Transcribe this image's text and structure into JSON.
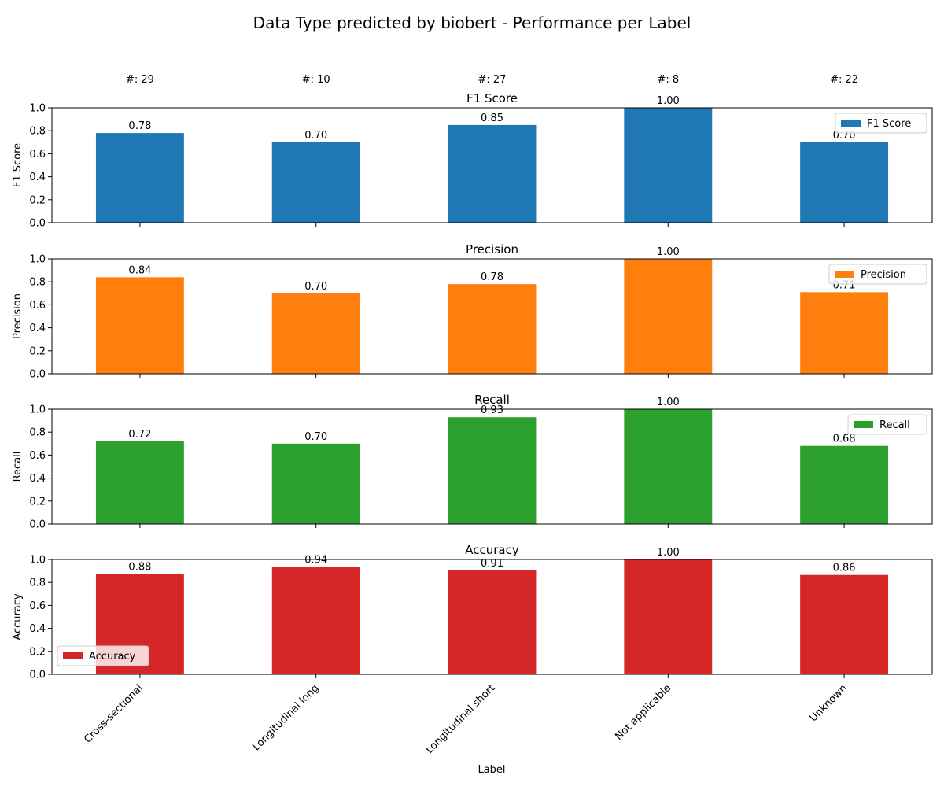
{
  "chart_data": {
    "type": "bar",
    "title": "Data Type predicted by biobert - Performance per Label",
    "xlabel": "Label",
    "categories": [
      "Cross-sectional",
      "Longitudinal long",
      "Longitudinal short",
      "Not applicable",
      "Unknown"
    ],
    "counts": [
      "#: 29",
      "#: 10",
      "#: 27",
      "#: 8",
      "#: 22"
    ],
    "ylim": [
      0,
      1
    ],
    "yticks": [
      "0.0",
      "0.2",
      "0.4",
      "0.6",
      "0.8",
      "1.0"
    ],
    "grid": false,
    "panels": [
      {
        "title": "F1 Score",
        "ylabel": "F1 Score",
        "legend": "F1 Score",
        "legend_position": "upper-right",
        "color": "#1f77b4",
        "values": [
          0.78,
          0.7,
          0.85,
          1.0,
          0.7
        ],
        "labels": [
          "0.78",
          "0.70",
          "0.85",
          "1.00",
          "0.70"
        ]
      },
      {
        "title": "Precision",
        "ylabel": "Precision",
        "legend": "Precision",
        "legend_position": "upper-right",
        "color": "#ff7f0e",
        "values": [
          0.84,
          0.7,
          0.78,
          1.0,
          0.71
        ],
        "labels": [
          "0.84",
          "0.70",
          "0.78",
          "1.00",
          "0.71"
        ]
      },
      {
        "title": "Recall",
        "ylabel": "Recall",
        "legend": "Recall",
        "legend_position": "upper-right",
        "color": "#2ca02c",
        "values": [
          0.72,
          0.7,
          0.93,
          1.0,
          0.68
        ],
        "labels": [
          "0.72",
          "0.70",
          "0.93",
          "1.00",
          "0.68"
        ]
      },
      {
        "title": "Accuracy",
        "ylabel": "Accuracy",
        "legend": "Accuracy",
        "legend_position": "lower-left",
        "color": "#d62728",
        "values": [
          0.875,
          0.935,
          0.905,
          1.0,
          0.865
        ],
        "labels": [
          "0.88",
          "0.94",
          "0.91",
          "1.00",
          "0.86"
        ]
      }
    ]
  }
}
